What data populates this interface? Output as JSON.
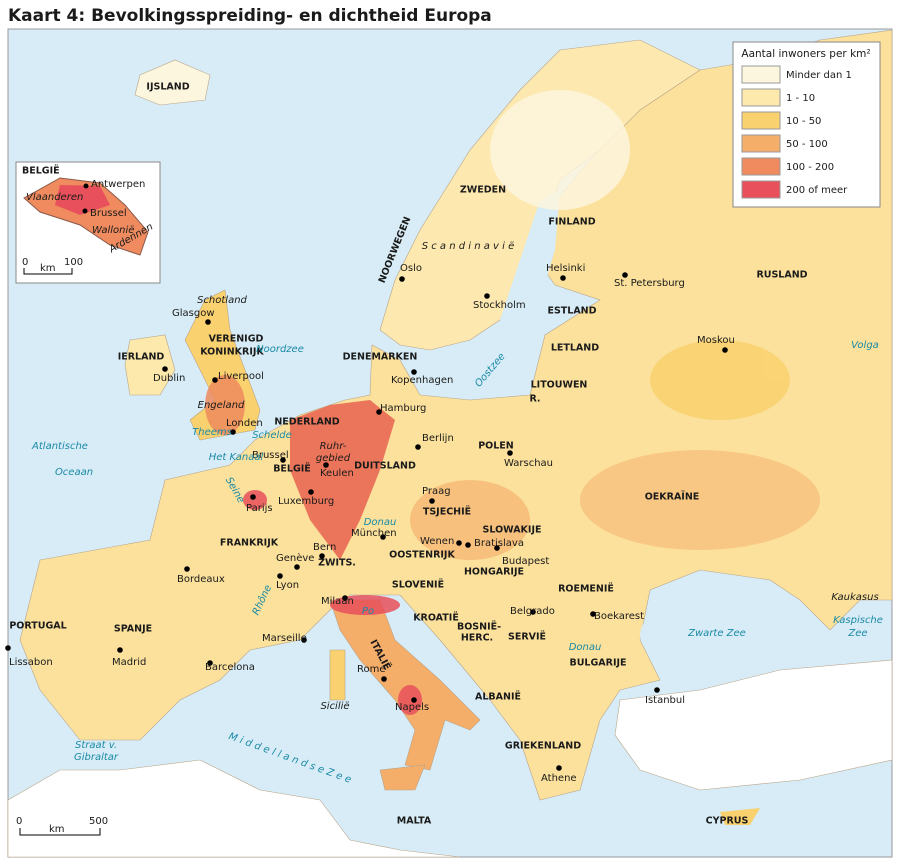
{
  "title": "Kaart 4: Bevolkingsspreiding- en dichtheid Europa",
  "legend": {
    "title": "Aantal inwoners per km²",
    "items": [
      {
        "label": "Minder dan 1",
        "color": "#fdf6de"
      },
      {
        "label": "1 - 10",
        "color": "#fde9ac"
      },
      {
        "label": "10 - 50",
        "color": "#f9d16e"
      },
      {
        "label": "50 - 100",
        "color": "#f5ad6a"
      },
      {
        "label": "100 - 200",
        "color": "#ef8b5e"
      },
      {
        "label": "200 of meer",
        "color": "#e8505b"
      }
    ]
  },
  "inset": {
    "title": "BELGIË",
    "cities": [
      "Antwerpen",
      "Brussel"
    ],
    "regions": [
      "Vlaanderen",
      "Wallonië",
      "Ardennen"
    ],
    "scale": {
      "start": 0,
      "unit": "km",
      "end": 100
    }
  },
  "countries": [
    "IJSLAND",
    "ZWEDEN",
    "FINLAND",
    "NOORWEGEN",
    "RUSLAND",
    "ESTLAND",
    "LETLAND",
    "LITOUWEN",
    "R.",
    "DENEMARKEN",
    "VERENIGD",
    "KONINKRIJK",
    "IERLAND",
    "NEDERLAND",
    "BELGIË",
    "DUITSLAND",
    "POLEN",
    "TSJECHIË",
    "SLOWAKIJE",
    "OOSTENRIJK",
    "ZWITS.",
    "HONGARIJE",
    "ROEMENIË",
    "FRANKRIJK",
    "OEKRAÏNE",
    "SLOVENIË",
    "KROATIË",
    "BOSNIË-",
    "HERC.",
    "SERVIË",
    "BULGARIJE",
    "ALBANIË",
    "GRIEKENLAND",
    "ITALIË",
    "PORTUGAL",
    "SPANJE",
    "MALTA",
    "CYPRUS"
  ],
  "cities": [
    "Glasgow",
    "Dublin",
    "Liverpool",
    "Londen",
    "Brussel",
    "Parijs",
    "Luxemburg",
    "Keulen",
    "Hamburg",
    "Kopenhagen",
    "Oslo",
    "Stockholm",
    "Helsinki",
    "St. Petersburg",
    "Moskou",
    "Berlijn",
    "Warschau",
    "Praag",
    "Wenen",
    "Bratislava",
    "Budapest",
    "München",
    "Bern",
    "Genève",
    "Lyon",
    "Bordeaux",
    "Milaan",
    "Marseille",
    "Barcelona",
    "Madrid",
    "Lissabon",
    "Rome",
    "Napels",
    "Belgrado",
    "Boekarest",
    "Istanbul",
    "Athene"
  ],
  "regions": [
    "Schotland",
    "Engeland",
    "S c a n d i n a v i ë",
    "Ruhr-",
    "gebied",
    "Sicilië",
    "Kaukasus"
  ],
  "waters": [
    "Noordzee",
    "Oostzee",
    "Atlantische",
    "Oceaan",
    "Het Kanaal",
    "Theems",
    "Schelde",
    "Seine",
    "Rhône",
    "Donau",
    "Donau",
    "Po",
    "Volga",
    "Zwarte Zee",
    "Kaspische",
    "Zee",
    "M i d d e l l a n d s e   Z e e",
    "Straat v.",
    "Gibraltar"
  ],
  "scale": {
    "start": 0,
    "unit": "km",
    "end": 500
  }
}
